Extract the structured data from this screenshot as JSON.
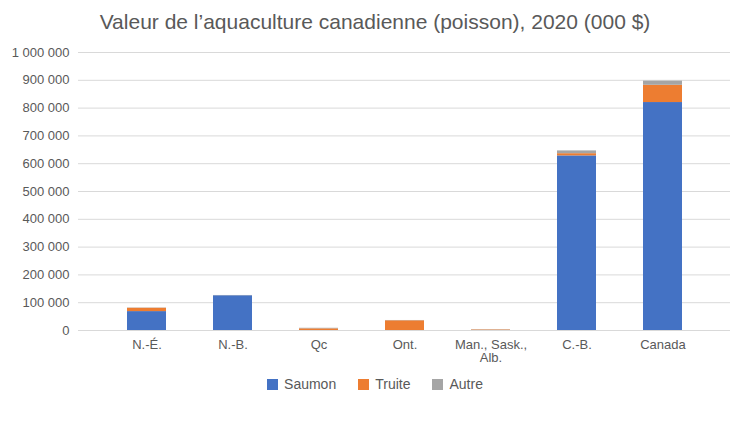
{
  "chart_data": {
    "type": "bar",
    "stacked": true,
    "title": "Valeur de l’aquaculture canadienne (poisson), 2020 (000 $)",
    "categories": [
      "N.-É.",
      "N.-B.",
      "Qc",
      "Ont.",
      "Man., Sask., Alb.",
      "C.-B.",
      "Canada"
    ],
    "series": [
      {
        "name": "Saumon",
        "color": "#4472c4",
        "values": [
          68000,
          125000,
          0,
          0,
          0,
          628000,
          820000
        ]
      },
      {
        "name": "Truite",
        "color": "#ed7d31",
        "values": [
          12000,
          0,
          6000,
          35000,
          2000,
          8000,
          62000
        ]
      },
      {
        "name": "Autre",
        "color": "#a5a5a5",
        "values": [
          1000,
          1000,
          2000,
          1000,
          1000,
          10000,
          15000
        ]
      }
    ],
    "ylim": [
      0,
      1000000
    ],
    "yticks": [
      0,
      {
        "value": 100000,
        "label": "100 000"
      },
      {
        "value": 200000,
        "label": "200 000"
      },
      {
        "value": 300000,
        "label": "300 000"
      },
      {
        "value": 400000,
        "label": "400 000"
      },
      {
        "value": 500000,
        "label": "500 000"
      },
      {
        "value": 600000,
        "label": "600 000"
      },
      {
        "value": 700000,
        "label": "700 000"
      },
      {
        "value": 800000,
        "label": "800 000"
      },
      {
        "value": 900000,
        "label": "900 000"
      },
      {
        "value": 1000000,
        "label": "1 000 000"
      }
    ],
    "grid": true,
    "legend": "bottom"
  }
}
